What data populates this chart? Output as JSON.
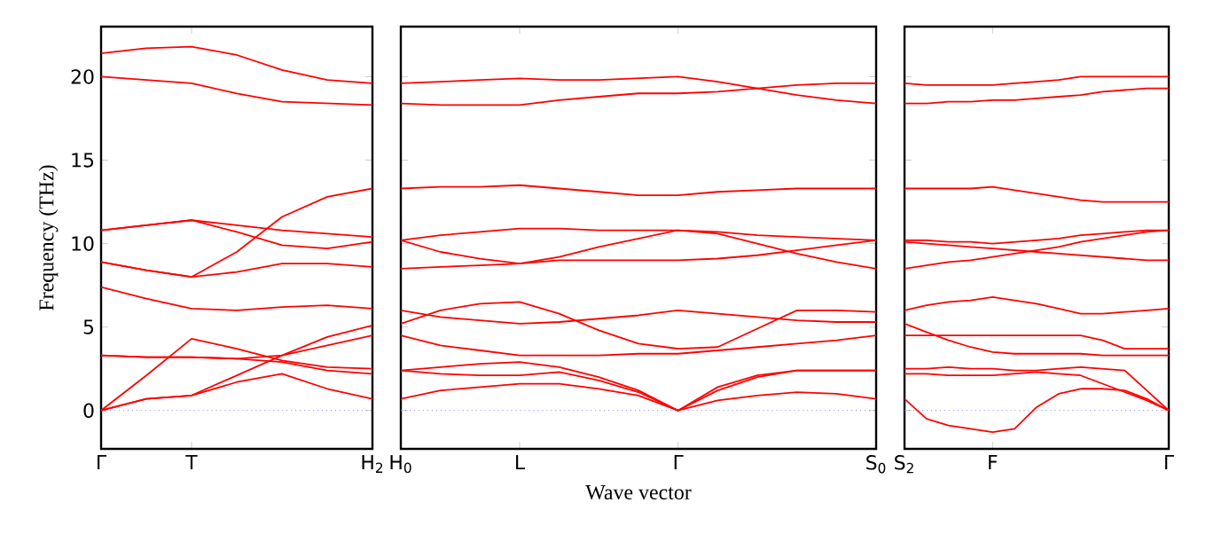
{
  "chart_data": [
    {
      "type": "line",
      "ylabel": "Frequency (THz)",
      "ylim": [
        -2.3,
        23
      ],
      "categories": [
        "Γ",
        null,
        "T",
        null,
        null,
        null,
        "H$_{2}$"
      ],
      "yticks": [
        0,
        5,
        10,
        15,
        20
      ],
      "ref_lines": [
        {
          "axis": "y",
          "value": 0,
          "color": "#7f7fff",
          "line_style": "dotted"
        }
      ],
      "series": [
        {
          "color": "#ff0000",
          "values": [
            21.4,
            21.7,
            21.8,
            21.3,
            20.4,
            19.8,
            19.6
          ]
        },
        {
          "color": "#ff0000",
          "values": [
            20.0,
            19.8,
            19.6,
            19.0,
            18.5,
            18.4,
            18.3
          ]
        },
        {
          "color": "#ff0000",
          "values": [
            10.8,
            11.1,
            11.4,
            11.1,
            10.8,
            10.6,
            10.4
          ]
        },
        {
          "color": "#ff0000",
          "values": [
            10.8,
            11.1,
            11.4,
            10.7,
            9.9,
            9.7,
            10.1
          ]
        },
        {
          "color": "#ff0000",
          "values": [
            8.9,
            8.4,
            8.0,
            9.5,
            11.6,
            12.8,
            13.3
          ]
        },
        {
          "color": "#ff0000",
          "values": [
            8.9,
            8.4,
            8.0,
            8.3,
            8.8,
            8.8,
            8.6
          ]
        },
        {
          "color": "#ff0000",
          "values": [
            7.4,
            6.7,
            6.1,
            6.0,
            6.2,
            6.3,
            6.1
          ]
        },
        {
          "color": "#ff0000",
          "values": [
            0,
            2.1,
            4.3,
            3.7,
            3.0,
            2.6,
            2.5
          ]
        },
        {
          "color": "#ff0000",
          "values": [
            3.3,
            3.2,
            3.2,
            3.1,
            2.9,
            2.4,
            2.2
          ]
        },
        {
          "color": "#ff0000",
          "values": [
            3.3,
            3.2,
            3.2,
            3.1,
            3.3,
            3.9,
            4.5
          ]
        },
        {
          "color": "#ff0000",
          "values": [
            0,
            0.7,
            0.9,
            2.1,
            3.3,
            4.4,
            5.1
          ]
        },
        {
          "color": "#ff0000",
          "values": [
            0,
            0.7,
            0.9,
            1.7,
            2.2,
            1.3,
            0.7
          ]
        }
      ]
    },
    {
      "type": "line",
      "xlabel": "Wave vector",
      "ylim": [
        -2.3,
        23
      ],
      "tick_labels": "x",
      "categories": [
        "H$_{0}$",
        null,
        null,
        "L",
        null,
        null,
        null,
        "Γ",
        null,
        null,
        null,
        null,
        "S$_{0}$"
      ],
      "yticks": [
        0,
        5,
        10,
        15,
        20
      ],
      "ref_lines": [
        {
          "axis": "y",
          "value": 0,
          "color": "#7f7fff",
          "line_style": "dotted"
        }
      ],
      "series": [
        {
          "color": "#ff0000",
          "values": [
            19.6,
            19.7,
            19.8,
            19.9,
            19.8,
            19.8,
            19.9,
            20.0,
            19.7,
            19.3,
            18.9,
            18.6,
            18.4
          ]
        },
        {
          "color": "#ff0000",
          "values": [
            18.4,
            18.3,
            18.3,
            18.3,
            18.6,
            18.8,
            19.0,
            19.0,
            19.1,
            19.3,
            19.5,
            19.6,
            19.6
          ]
        },
        {
          "color": "#ff0000",
          "values": [
            13.3,
            13.4,
            13.4,
            13.5,
            13.3,
            13.1,
            12.9,
            12.9,
            13.1,
            13.2,
            13.3,
            13.3,
            13.3
          ]
        },
        {
          "color": "#ff0000",
          "values": [
            10.2,
            10.5,
            10.7,
            10.9,
            10.9,
            10.8,
            10.8,
            10.8,
            10.7,
            10.5,
            10.4,
            10.3,
            10.2
          ]
        },
        {
          "color": "#ff0000",
          "values": [
            10.2,
            9.5,
            9.1,
            8.8,
            9.2,
            9.8,
            10.3,
            10.8,
            10.6,
            10.0,
            9.4,
            8.9,
            8.5
          ]
        },
        {
          "color": "#ff0000",
          "values": [
            8.5,
            8.6,
            8.7,
            8.8,
            9.0,
            9.0,
            9.0,
            9.0,
            9.1,
            9.3,
            9.6,
            9.9,
            10.2
          ]
        },
        {
          "color": "#ff0000",
          "values": [
            6.0,
            5.6,
            5.4,
            5.2,
            5.3,
            5.5,
            5.7,
            6.0,
            5.8,
            5.6,
            5.4,
            5.3,
            5.3
          ]
        },
        {
          "color": "#ff0000",
          "values": [
            5.2,
            6.0,
            6.4,
            6.5,
            5.8,
            4.8,
            4.0,
            3.7,
            3.8,
            4.9,
            6.0,
            6.0,
            5.9
          ]
        },
        {
          "color": "#ff0000",
          "values": [
            4.5,
            3.9,
            3.6,
            3.3,
            3.3,
            3.3,
            3.4,
            3.4,
            3.6,
            3.8,
            4.0,
            4.2,
            4.5
          ]
        },
        {
          "color": "#ff0000",
          "values": [
            2.4,
            2.6,
            2.8,
            2.9,
            2.6,
            2.0,
            1.2,
            0,
            1.2,
            2.0,
            2.4,
            2.4,
            2.4
          ]
        },
        {
          "color": "#ff0000",
          "values": [
            2.4,
            2.2,
            2.1,
            2.1,
            2.3,
            1.8,
            1.1,
            0,
            1.4,
            2.1,
            2.4,
            2.4,
            2.4
          ]
        },
        {
          "color": "#ff0000",
          "values": [
            0.7,
            1.2,
            1.4,
            1.6,
            1.6,
            1.3,
            0.9,
            0,
            0.6,
            0.9,
            1.1,
            1.0,
            0.7
          ]
        }
      ]
    },
    {
      "type": "line",
      "ylim": [
        -2.3,
        23
      ],
      "tick_labels": "x",
      "categories": [
        "S$_{2}$",
        null,
        null,
        null,
        "F",
        null,
        null,
        null,
        null,
        null,
        null,
        null,
        "Γ"
      ],
      "yticks": [
        0,
        5,
        10,
        15,
        20
      ],
      "ref_lines": [
        {
          "axis": "y",
          "value": 0,
          "color": "#7f7fff",
          "line_style": "dotted"
        }
      ],
      "series": [
        {
          "color": "#ff0000",
          "values": [
            19.6,
            19.5,
            19.5,
            19.5,
            19.5,
            19.6,
            19.7,
            19.8,
            20.0,
            20.0,
            20.0,
            20.0,
            20.0
          ]
        },
        {
          "color": "#ff0000",
          "values": [
            18.4,
            18.4,
            18.5,
            18.5,
            18.6,
            18.6,
            18.7,
            18.8,
            18.9,
            19.1,
            19.2,
            19.3,
            19.3
          ]
        },
        {
          "color": "#ff0000",
          "values": [
            13.3,
            13.3,
            13.3,
            13.3,
            13.4,
            13.2,
            13.0,
            12.8,
            12.6,
            12.5,
            12.5,
            12.5,
            12.5
          ]
        },
        {
          "color": "#ff0000",
          "values": [
            10.2,
            10.2,
            10.1,
            10.1,
            10.0,
            10.1,
            10.2,
            10.3,
            10.5,
            10.6,
            10.7,
            10.8,
            10.8
          ]
        },
        {
          "color": "#ff0000",
          "values": [
            10.1,
            10.0,
            9.9,
            9.8,
            9.7,
            9.6,
            9.5,
            9.4,
            9.3,
            9.2,
            9.1,
            9.0,
            9.0
          ]
        },
        {
          "color": "#ff0000",
          "values": [
            8.5,
            8.7,
            8.9,
            9.0,
            9.2,
            9.4,
            9.6,
            9.8,
            10.1,
            10.3,
            10.5,
            10.7,
            10.8
          ]
        },
        {
          "color": "#ff0000",
          "values": [
            6.0,
            6.3,
            6.5,
            6.6,
            6.8,
            6.6,
            6.4,
            6.1,
            5.8,
            5.8,
            5.9,
            6.0,
            6.1
          ]
        },
        {
          "color": "#ff0000",
          "values": [
            5.2,
            4.7,
            4.2,
            3.8,
            3.5,
            3.4,
            3.4,
            3.4,
            3.4,
            3.3,
            3.3,
            3.3,
            3.3
          ]
        },
        {
          "color": "#ff0000",
          "values": [
            4.5,
            4.5,
            4.5,
            4.5,
            4.5,
            4.5,
            4.5,
            4.5,
            4.5,
            4.2,
            3.7,
            3.7,
            3.7
          ]
        },
        {
          "color": "#ff0000",
          "values": [
            2.5,
            2.5,
            2.6,
            2.5,
            2.5,
            2.4,
            2.4,
            2.5,
            2.6,
            2.5,
            2.4,
            1.2,
            0
          ]
        },
        {
          "color": "#ff0000",
          "values": [
            2.2,
            2.2,
            2.1,
            2.1,
            2.1,
            2.2,
            2.3,
            2.2,
            2.1,
            1.6,
            1.1,
            0.6,
            0
          ]
        },
        {
          "color": "#ff0000",
          "values": [
            0.7,
            -0.5,
            -0.9,
            -1.1,
            -1.3,
            -1.1,
            0.2,
            1.0,
            1.3,
            1.3,
            1.2,
            0.7,
            0
          ]
        }
      ]
    }
  ]
}
